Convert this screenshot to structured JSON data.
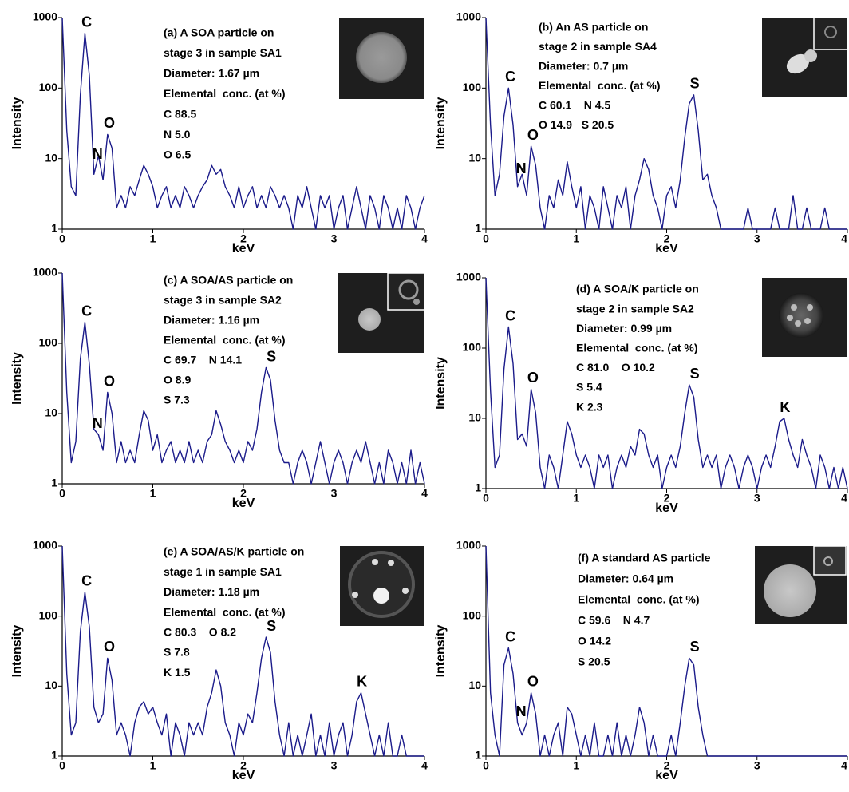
{
  "chart_data": [
    {
      "type": "line",
      "color": "#1b1b8a",
      "xlabel": "keV",
      "ylabel": "Intensity",
      "ylog": true,
      "xlim": [
        0,
        4
      ],
      "ylim": [
        1,
        1000
      ],
      "xticks": [
        0,
        1,
        2,
        3,
        4
      ],
      "yticks": [
        1,
        10,
        100,
        1000
      ],
      "note": [
        "(a) A SOA particle on",
        "stage 3 in sample SA1",
        "Diameter: 1.67 µm",
        "Elemental  conc. (at %)",
        "C 88.5",
        "N 5.0",
        "O 6.5"
      ],
      "peaks": [
        {
          "label": "C",
          "x": 0.27,
          "y": 600
        },
        {
          "label": "N",
          "x": 0.39,
          "y": 8
        },
        {
          "label": "O",
          "x": 0.52,
          "y": 22
        }
      ],
      "x": [
        0,
        0.05,
        0.1,
        0.15,
        0.2,
        0.25,
        0.3,
        0.35,
        0.4,
        0.45,
        0.5,
        0.55,
        0.6,
        0.65,
        0.7,
        0.75,
        0.8,
        0.85,
        0.9,
        0.95,
        1,
        1.05,
        1.1,
        1.15,
        1.2,
        1.25,
        1.3,
        1.35,
        1.4,
        1.45,
        1.5,
        1.55,
        1.6,
        1.65,
        1.7,
        1.75,
        1.8,
        1.85,
        1.9,
        1.95,
        2,
        2.05,
        2.1,
        2.15,
        2.2,
        2.25,
        2.3,
        2.35,
        2.4,
        2.45,
        2.5,
        2.55,
        2.6,
        2.65,
        2.7,
        2.75,
        2.8,
        2.85,
        2.9,
        2.95,
        3,
        3.05,
        3.1,
        3.15,
        3.2,
        3.25,
        3.3,
        3.35,
        3.4,
        3.45,
        3.5,
        3.55,
        3.6,
        3.65,
        3.7,
        3.75,
        3.8,
        3.85,
        3.9,
        3.95,
        4
      ],
      "values": [
        1000,
        25,
        4,
        3,
        80,
        600,
        150,
        6,
        11,
        5,
        22,
        14,
        2,
        3,
        2,
        4,
        3,
        5,
        8,
        6,
        4,
        2,
        3,
        4,
        2,
        3,
        2,
        4,
        3,
        2,
        3,
        4,
        5,
        8,
        6,
        7,
        4,
        3,
        2,
        4,
        2,
        3,
        4,
        2,
        3,
        2,
        4,
        3,
        2,
        3,
        2,
        1,
        3,
        2,
        4,
        2,
        1,
        3,
        2,
        3,
        1,
        2,
        3,
        1,
        2,
        4,
        2,
        1,
        3,
        2,
        1,
        3,
        2,
        1,
        2,
        1,
        3,
        2,
        1,
        2,
        3
      ]
    },
    {
      "type": "line",
      "color": "#1b1b8a",
      "xlabel": "keV",
      "ylabel": "Intensity",
      "ylog": true,
      "xlim": [
        0,
        4
      ],
      "ylim": [
        1,
        1000
      ],
      "xticks": [
        0,
        1,
        2,
        3,
        4
      ],
      "yticks": [
        1,
        10,
        100,
        1000
      ],
      "note": [
        "(b) An AS particle on",
        "stage 2 in sample SA4",
        "Diameter: 0.7 µm",
        "Elemental  conc. (at %)",
        "C 60.1    N 4.5",
        "O 14.9   S 20.5"
      ],
      "peaks": [
        {
          "label": "C",
          "x": 0.27,
          "y": 100
        },
        {
          "label": "N",
          "x": 0.39,
          "y": 5
        },
        {
          "label": "O",
          "x": 0.52,
          "y": 15
        },
        {
          "label": "S",
          "x": 2.31,
          "y": 80
        }
      ],
      "x": [
        0,
        0.05,
        0.1,
        0.15,
        0.2,
        0.25,
        0.3,
        0.35,
        0.4,
        0.45,
        0.5,
        0.55,
        0.6,
        0.65,
        0.7,
        0.75,
        0.8,
        0.85,
        0.9,
        0.95,
        1,
        1.05,
        1.1,
        1.15,
        1.2,
        1.25,
        1.3,
        1.35,
        1.4,
        1.45,
        1.5,
        1.55,
        1.6,
        1.65,
        1.7,
        1.75,
        1.8,
        1.85,
        1.9,
        1.95,
        2,
        2.05,
        2.1,
        2.15,
        2.2,
        2.25,
        2.3,
        2.35,
        2.4,
        2.45,
        2.5,
        2.55,
        2.6,
        2.65,
        2.7,
        2.75,
        2.8,
        2.85,
        2.9,
        2.95,
        3,
        3.05,
        3.1,
        3.15,
        3.2,
        3.25,
        3.3,
        3.35,
        3.4,
        3.45,
        3.5,
        3.55,
        3.6,
        3.65,
        3.7,
        3.75,
        3.8,
        3.85,
        3.9,
        3.95,
        4
      ],
      "values": [
        1000,
        30,
        3,
        6,
        40,
        100,
        30,
        4,
        6,
        3,
        15,
        8,
        2,
        1,
        3,
        2,
        5,
        3,
        9,
        4,
        2,
        4,
        1,
        3,
        2,
        1,
        4,
        2,
        1,
        3,
        2,
        4,
        1,
        3,
        5,
        10,
        7,
        3,
        2,
        1,
        3,
        4,
        2,
        5,
        20,
        60,
        80,
        25,
        5,
        6,
        3,
        2,
        1,
        1,
        1,
        1,
        1,
        1,
        2,
        1,
        1,
        1,
        1,
        1,
        2,
        1,
        1,
        1,
        3,
        1,
        1,
        2,
        1,
        1,
        1,
        2,
        1,
        1,
        1,
        1,
        1
      ]
    },
    {
      "type": "line",
      "color": "#1b1b8a",
      "xlabel": "keV",
      "ylabel": "Intensity",
      "ylog": true,
      "xlim": [
        0,
        4
      ],
      "ylim": [
        1,
        1000
      ],
      "xticks": [
        0,
        1,
        2,
        3,
        4
      ],
      "yticks": [
        1,
        10,
        100,
        1000
      ],
      "note": [
        "(c) A SOA/AS particle on",
        "stage 3 in sample SA2",
        "Diameter: 1.16 µm",
        "Elemental  conc. (at %)",
        "C 69.7    N 14.1",
        "O 8.9",
        "S 7.3"
      ],
      "peaks": [
        {
          "label": "C",
          "x": 0.27,
          "y": 200
        },
        {
          "label": "N",
          "x": 0.39,
          "y": 5
        },
        {
          "label": "O",
          "x": 0.52,
          "y": 20
        },
        {
          "label": "S",
          "x": 2.31,
          "y": 45
        }
      ],
      "x": [
        0,
        0.05,
        0.1,
        0.15,
        0.2,
        0.25,
        0.3,
        0.35,
        0.4,
        0.45,
        0.5,
        0.55,
        0.6,
        0.65,
        0.7,
        0.75,
        0.8,
        0.85,
        0.9,
        0.95,
        1,
        1.05,
        1.1,
        1.15,
        1.2,
        1.25,
        1.3,
        1.35,
        1.4,
        1.45,
        1.5,
        1.55,
        1.6,
        1.65,
        1.7,
        1.75,
        1.8,
        1.85,
        1.9,
        1.95,
        2,
        2.05,
        2.1,
        2.15,
        2.2,
        2.25,
        2.3,
        2.35,
        2.4,
        2.45,
        2.5,
        2.55,
        2.6,
        2.65,
        2.7,
        2.75,
        2.8,
        2.85,
        2.9,
        2.95,
        3,
        3.05,
        3.1,
        3.15,
        3.2,
        3.25,
        3.3,
        3.35,
        3.4,
        3.45,
        3.5,
        3.55,
        3.6,
        3.65,
        3.7,
        3.75,
        3.8,
        3.85,
        3.9,
        3.95,
        4
      ],
      "values": [
        1000,
        20,
        2,
        4,
        60,
        200,
        50,
        6,
        5,
        3,
        20,
        10,
        2,
        4,
        2,
        3,
        2,
        5,
        11,
        8,
        3,
        5,
        2,
        3,
        4,
        2,
        3,
        2,
        4,
        2,
        3,
        2,
        4,
        5,
        11,
        7,
        4,
        3,
        2,
        3,
        2,
        4,
        3,
        6,
        20,
        45,
        30,
        8,
        3,
        2,
        2,
        1,
        2,
        3,
        2,
        1,
        2,
        4,
        2,
        1,
        2,
        3,
        2,
        1,
        2,
        3,
        2,
        4,
        2,
        1,
        2,
        1,
        3,
        2,
        1,
        2,
        1,
        3,
        1,
        2,
        1
      ]
    },
    {
      "type": "line",
      "color": "#1b1b8a",
      "xlabel": "keV",
      "ylabel": "Intensity",
      "ylog": true,
      "xlim": [
        0,
        4
      ],
      "ylim": [
        1,
        1000
      ],
      "xticks": [
        0,
        1,
        2,
        3,
        4
      ],
      "yticks": [
        1,
        10,
        100,
        1000
      ],
      "note": [
        "(d) A SOA/K particle on",
        "stage 2 in sample SA2",
        "Diameter: 0.99 µm",
        "Elemental  conc. (at %)",
        "C 81.0    O 10.2",
        "S 5.4",
        "K 2.3"
      ],
      "peaks": [
        {
          "label": "C",
          "x": 0.27,
          "y": 200
        },
        {
          "label": "O",
          "x": 0.52,
          "y": 26
        },
        {
          "label": "S",
          "x": 2.31,
          "y": 30
        },
        {
          "label": "K",
          "x": 3.31,
          "y": 10
        }
      ],
      "x": [
        0,
        0.05,
        0.1,
        0.15,
        0.2,
        0.25,
        0.3,
        0.35,
        0.4,
        0.45,
        0.5,
        0.55,
        0.6,
        0.65,
        0.7,
        0.75,
        0.8,
        0.85,
        0.9,
        0.95,
        1,
        1.05,
        1.1,
        1.15,
        1.2,
        1.25,
        1.3,
        1.35,
        1.4,
        1.45,
        1.5,
        1.55,
        1.6,
        1.65,
        1.7,
        1.75,
        1.8,
        1.85,
        1.9,
        1.95,
        2,
        2.05,
        2.1,
        2.15,
        2.2,
        2.25,
        2.3,
        2.35,
        2.4,
        2.45,
        2.5,
        2.55,
        2.6,
        2.65,
        2.7,
        2.75,
        2.8,
        2.85,
        2.9,
        2.95,
        3,
        3.05,
        3.1,
        3.15,
        3.2,
        3.25,
        3.3,
        3.35,
        3.4,
        3.45,
        3.5,
        3.55,
        3.6,
        3.65,
        3.7,
        3.75,
        3.8,
        3.85,
        3.9,
        3.95,
        4
      ],
      "values": [
        1000,
        25,
        2,
        3,
        50,
        200,
        60,
        5,
        6,
        4,
        26,
        12,
        2,
        1,
        3,
        2,
        1,
        3,
        9,
        6,
        3,
        2,
        3,
        2,
        1,
        3,
        2,
        3,
        1,
        2,
        3,
        2,
        4,
        3,
        7,
        6,
        3,
        2,
        3,
        1,
        2,
        3,
        2,
        4,
        12,
        30,
        20,
        5,
        2,
        3,
        2,
        3,
        1,
        2,
        3,
        2,
        1,
        2,
        3,
        2,
        1,
        2,
        3,
        2,
        4,
        9,
        10,
        5,
        3,
        2,
        5,
        3,
        2,
        1,
        3,
        2,
        1,
        2,
        1,
        2,
        1
      ]
    },
    {
      "type": "line",
      "color": "#1b1b8a",
      "xlabel": "keV",
      "ylabel": "Intensity",
      "ylog": true,
      "xlim": [
        0,
        4
      ],
      "ylim": [
        1,
        1000
      ],
      "xticks": [
        0,
        1,
        2,
        3,
        4
      ],
      "yticks": [
        1,
        10,
        100,
        1000
      ],
      "note": [
        "(e) A SOA/AS/K particle on",
        "stage 1 in sample SA1",
        "Diameter: 1.18 µm",
        "Elemental  conc. (at %)",
        "C 80.3    O 8.2",
        "S 7.8",
        "K 1.5"
      ],
      "peaks": [
        {
          "label": "C",
          "x": 0.27,
          "y": 220
        },
        {
          "label": "O",
          "x": 0.52,
          "y": 25
        },
        {
          "label": "S",
          "x": 2.31,
          "y": 50
        },
        {
          "label": "K",
          "x": 3.31,
          "y": 8
        }
      ],
      "x": [
        0,
        0.05,
        0.1,
        0.15,
        0.2,
        0.25,
        0.3,
        0.35,
        0.4,
        0.45,
        0.5,
        0.55,
        0.6,
        0.65,
        0.7,
        0.75,
        0.8,
        0.85,
        0.9,
        0.95,
        1,
        1.05,
        1.1,
        1.15,
        1.2,
        1.25,
        1.3,
        1.35,
        1.4,
        1.45,
        1.5,
        1.55,
        1.6,
        1.65,
        1.7,
        1.75,
        1.8,
        1.85,
        1.9,
        1.95,
        2,
        2.05,
        2.1,
        2.15,
        2.2,
        2.25,
        2.3,
        2.35,
        2.4,
        2.45,
        2.5,
        2.55,
        2.6,
        2.65,
        2.7,
        2.75,
        2.8,
        2.85,
        2.9,
        2.95,
        3,
        3.05,
        3.1,
        3.15,
        3.2,
        3.25,
        3.3,
        3.35,
        3.4,
        3.45,
        3.5,
        3.55,
        3.6,
        3.65,
        3.7,
        3.75,
        3.8,
        3.85,
        3.9,
        3.95,
        4
      ],
      "values": [
        1000,
        15,
        2,
        3,
        60,
        220,
        70,
        5,
        3,
        4,
        25,
        12,
        2,
        3,
        2,
        1,
        3,
        5,
        6,
        4,
        5,
        3,
        2,
        4,
        1,
        3,
        2,
        1,
        3,
        2,
        3,
        2,
        5,
        8,
        17,
        10,
        3,
        2,
        1,
        3,
        2,
        4,
        3,
        8,
        25,
        50,
        30,
        6,
        2,
        1,
        3,
        1,
        2,
        1,
        2,
        4,
        1,
        2,
        1,
        3,
        1,
        2,
        3,
        1,
        2,
        6,
        8,
        4,
        2,
        1,
        2,
        1,
        3,
        1,
        1,
        2,
        1,
        1,
        1,
        1,
        1
      ]
    },
    {
      "type": "line",
      "color": "#1b1b8a",
      "xlabel": "keV",
      "ylabel": "Intensity",
      "ylog": true,
      "xlim": [
        0,
        4
      ],
      "ylim": [
        1,
        1000
      ],
      "xticks": [
        0,
        1,
        2,
        3,
        4
      ],
      "yticks": [
        1,
        10,
        100,
        1000
      ],
      "note": [
        "(f) A standard AS particle",
        "Diameter: 0.64 µm",
        "Elemental  conc. (at %)",
        "C 59.6    N 4.7",
        "O 14.2",
        "S 20.5"
      ],
      "peaks": [
        {
          "label": "C",
          "x": 0.27,
          "y": 35
        },
        {
          "label": "N",
          "x": 0.39,
          "y": 3
        },
        {
          "label": "O",
          "x": 0.52,
          "y": 8
        },
        {
          "label": "S",
          "x": 2.31,
          "y": 25
        }
      ],
      "x": [
        0,
        0.05,
        0.1,
        0.15,
        0.2,
        0.25,
        0.3,
        0.35,
        0.4,
        0.45,
        0.5,
        0.55,
        0.6,
        0.65,
        0.7,
        0.75,
        0.8,
        0.85,
        0.9,
        0.95,
        1,
        1.05,
        1.1,
        1.15,
        1.2,
        1.25,
        1.3,
        1.35,
        1.4,
        1.45,
        1.5,
        1.55,
        1.6,
        1.65,
        1.7,
        1.75,
        1.8,
        1.85,
        1.9,
        1.95,
        2,
        2.05,
        2.1,
        2.15,
        2.2,
        2.25,
        2.3,
        2.35,
        2.4,
        2.45,
        2.5,
        2.55,
        2.6,
        2.65,
        2.7,
        2.75,
        2.8,
        2.85,
        2.9,
        2.95,
        3,
        3.05,
        3.1,
        3.15,
        3.2,
        3.25,
        3.3,
        3.35,
        3.4,
        3.45,
        3.5,
        3.55,
        3.6,
        3.65,
        3.7,
        3.75,
        3.8,
        3.85,
        3.9,
        3.95,
        4
      ],
      "values": [
        1000,
        8,
        2,
        1,
        20,
        35,
        15,
        3,
        2,
        3,
        8,
        4,
        1,
        2,
        1,
        2,
        3,
        1,
        5,
        4,
        2,
        1,
        2,
        1,
        3,
        1,
        1,
        2,
        1,
        3,
        1,
        2,
        1,
        2,
        5,
        3,
        1,
        2,
        1,
        1,
        1,
        2,
        1,
        3,
        10,
        25,
        20,
        5,
        2,
        1,
        1,
        1,
        1,
        1,
        1,
        1,
        1,
        1,
        1,
        1,
        1,
        1,
        1,
        1,
        1,
        1,
        1,
        1,
        1,
        1,
        1,
        1,
        1,
        1,
        1,
        1,
        1,
        1,
        1,
        1,
        1
      ]
    }
  ]
}
